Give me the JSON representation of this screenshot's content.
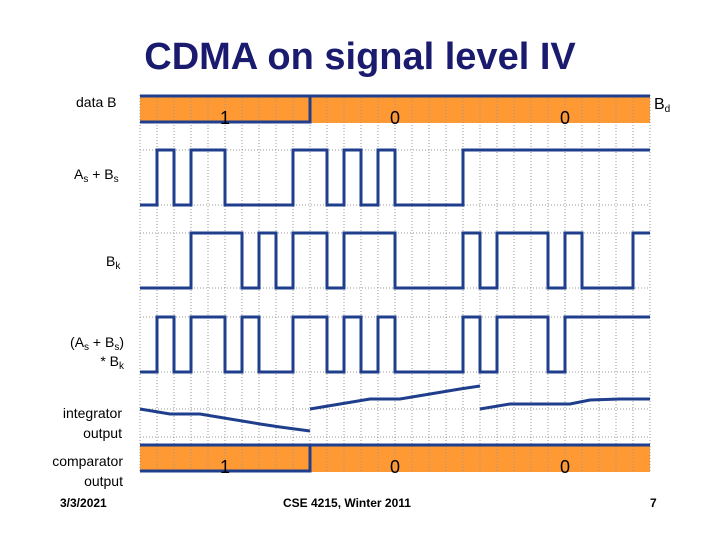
{
  "title": "CDMA on signal level IV",
  "labels": {
    "data_b": "data B",
    "sum": {
      "a": "A",
      "a_sub": "s",
      "plus": " + B",
      "b_sub": "s"
    },
    "bk": {
      "b": "B",
      "sub": "k"
    },
    "product": {
      "line1_open": "(A",
      "a_sub": "s",
      "plus": " + B",
      "b_sub": "s",
      "close": ")",
      "line2": "* B",
      "line2_sub": "k"
    },
    "integrator_1": "integrator",
    "integrator_2": "output",
    "comparator_1": "comparator",
    "comparator_2": "output",
    "bd": {
      "b": "B",
      "sub": "d"
    }
  },
  "data_bits": [
    "1",
    "0",
    "0"
  ],
  "comparator_bits": [
    "1",
    "0",
    "0"
  ],
  "signals": {
    "as_plus_bs": [
      0,
      1,
      0,
      1,
      1,
      0,
      0,
      0,
      0,
      1,
      1,
      0,
      1,
      0,
      1,
      0,
      0,
      0,
      0,
      1,
      1,
      1,
      1,
      1,
      1,
      1,
      1,
      1,
      1,
      1
    ],
    "bk": [
      0,
      0,
      0,
      1,
      1,
      1,
      0,
      1,
      0,
      1,
      1,
      0,
      1,
      1,
      1,
      0,
      0,
      0,
      0,
      1,
      0,
      1,
      1,
      1,
      0,
      1,
      0,
      0,
      0,
      1
    ],
    "product": [
      0,
      1,
      0,
      1,
      1,
      0,
      1,
      0,
      0,
      1,
      1,
      0,
      1,
      0,
      1,
      0,
      0,
      0,
      0,
      1,
      0,
      1,
      1,
      1,
      0,
      1,
      1,
      1,
      1,
      1
    ]
  },
  "footer": {
    "date": "3/3/2021",
    "course": "CSE 4215, Winter 2011",
    "page": "7"
  },
  "colors": {
    "title": "#1a1a6e",
    "bar": "#FF9933",
    "signal": "#1f3e8c",
    "grid": "#999999"
  }
}
